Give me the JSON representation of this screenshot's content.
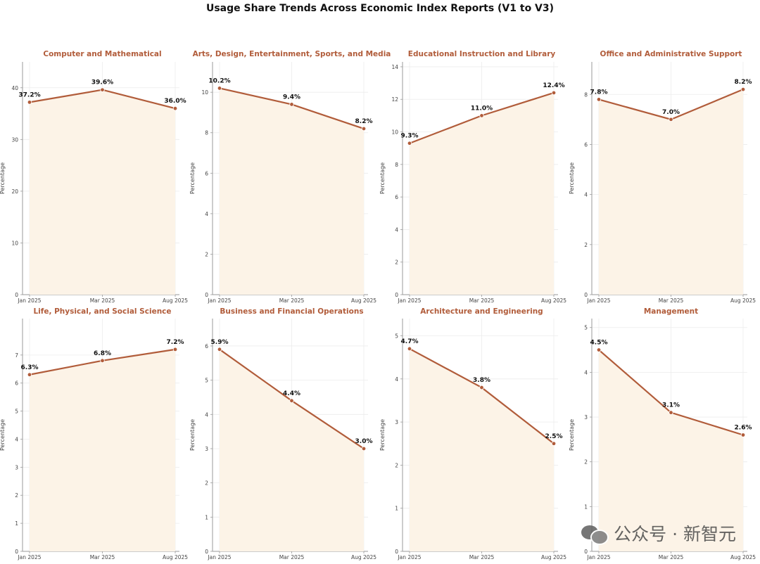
{
  "title": "Usage Share Trends Across Economic Index Reports (V1 to V3)",
  "watermark": "公众号 · 新智元",
  "colors": {
    "line": "#b15c3a",
    "fill": "#fcf3e7",
    "subtitle": "#b15c3a",
    "label": "#111111",
    "grid": "#ececec",
    "axis": "#9a9a9a",
    "tick": "#444444"
  },
  "chart_data": [
    {
      "type": "area",
      "title": "Computer and Mathematical",
      "categories": [
        "Jan 2025",
        "Mar 2025",
        "Aug 2025"
      ],
      "values": [
        37.2,
        39.6,
        36.0
      ],
      "value_labels": [
        "37.2%",
        "39.6%",
        "36.0%"
      ],
      "ylabel": "Percentage",
      "ylim": [
        0,
        45
      ],
      "yticks": [
        0,
        10,
        20,
        30,
        40
      ],
      "grid": true
    },
    {
      "type": "area",
      "title": "Arts, Design, Entertainment, Sports, and Media",
      "categories": [
        "Jan 2025",
        "Mar 2025",
        "Aug 2025"
      ],
      "values": [
        10.2,
        9.4,
        8.2
      ],
      "value_labels": [
        "10.2%",
        "9.4%",
        "8.2%"
      ],
      "ylabel": "Percentage",
      "ylim": [
        0,
        11.5
      ],
      "yticks": [
        0,
        2,
        4,
        6,
        8,
        10
      ],
      "grid": true
    },
    {
      "type": "area",
      "title": "Educational Instruction and Library",
      "categories": [
        "Jan 2025",
        "Mar 2025",
        "Aug 2025"
      ],
      "values": [
        9.3,
        11.0,
        12.4
      ],
      "value_labels": [
        "9.3%",
        "11.0%",
        "12.4%"
      ],
      "ylabel": "Percentage",
      "ylim": [
        0,
        14.3
      ],
      "yticks": [
        0,
        2,
        4,
        6,
        8,
        10,
        12,
        14
      ],
      "grid": true
    },
    {
      "type": "area",
      "title": "Office and Administrative Support",
      "categories": [
        "Jan 2025",
        "Mar 2025",
        "Aug 2025"
      ],
      "values": [
        7.8,
        7.0,
        8.2
      ],
      "value_labels": [
        "7.8%",
        "7.0%",
        "8.2%"
      ],
      "ylabel": "Percentage",
      "ylim": [
        0,
        9.3
      ],
      "yticks": [
        0,
        2,
        4,
        6,
        8
      ],
      "grid": true
    },
    {
      "type": "area",
      "title": "Life, Physical, and Social Science",
      "categories": [
        "Jan 2025",
        "Mar 2025",
        "Aug 2025"
      ],
      "values": [
        6.3,
        6.8,
        7.2
      ],
      "value_labels": [
        "6.3%",
        "6.8%",
        "7.2%"
      ],
      "ylabel": "Percentage",
      "ylim": [
        0,
        8.3
      ],
      "yticks": [
        0,
        1,
        2,
        3,
        4,
        5,
        6,
        7
      ],
      "grid": true
    },
    {
      "type": "area",
      "title": "Business and Financial Operations",
      "categories": [
        "Jan 2025",
        "Mar 2025",
        "Aug 2025"
      ],
      "values": [
        5.9,
        4.4,
        3.0
      ],
      "value_labels": [
        "5.9%",
        "4.4%",
        "3.0%"
      ],
      "ylabel": "Percentage",
      "ylim": [
        0,
        6.8
      ],
      "yticks": [
        0,
        1,
        2,
        3,
        4,
        5,
        6
      ],
      "grid": true
    },
    {
      "type": "area",
      "title": "Architecture and Engineering",
      "categories": [
        "Jan 2025",
        "Mar 2025",
        "Aug 2025"
      ],
      "values": [
        4.7,
        3.8,
        2.5
      ],
      "value_labels": [
        "4.7%",
        "3.8%",
        "2.5%"
      ],
      "ylabel": "Percentage",
      "ylim": [
        0,
        5.4
      ],
      "yticks": [
        0,
        1,
        2,
        3,
        4,
        5
      ],
      "grid": true
    },
    {
      "type": "area",
      "title": "Management",
      "categories": [
        "Jan 2025",
        "Mar 2025",
        "Aug 2025"
      ],
      "values": [
        4.5,
        3.1,
        2.6
      ],
      "value_labels": [
        "4.5%",
        "3.1%",
        "2.6%"
      ],
      "ylabel": "Percentage",
      "ylim": [
        0,
        5.2
      ],
      "yticks": [
        0,
        1,
        2,
        3,
        4,
        5
      ],
      "grid": true
    }
  ]
}
